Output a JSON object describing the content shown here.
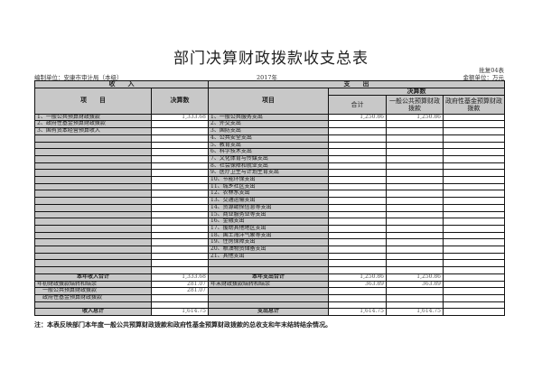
{
  "title": "部门决算财政拨款收支总表",
  "form_no": "批复04表",
  "unit": "编制单位：安康市审计局（本级）",
  "year": "2017年",
  "currency": "金额单位：万元",
  "headers": {
    "income": "收　　入",
    "expense": "支　　出",
    "item": "项　　目",
    "amount": "决算数",
    "exp_item": "项目",
    "exp_amount": "决算数",
    "total": "合计",
    "general": "一般公共预算财政拨款",
    "fund": "政府性基金预算财政拨款"
  },
  "rows": [
    [
      "1、一般公共预算财政拨款",
      "1,333.68",
      "1、一般公共服务支出",
      "1,250.86",
      "1,250.86",
      ""
    ],
    [
      "2、政府性基金预算财政拨款",
      "",
      "2、外交支出",
      "",
      "",
      ""
    ],
    [
      "3、国有资本经营预算收入",
      "",
      "3、国防支出",
      "",
      "",
      ""
    ],
    [
      "",
      "",
      "4、公共安全支出",
      "",
      "",
      ""
    ],
    [
      "",
      "",
      "5、教育支出",
      "",
      "",
      ""
    ],
    [
      "",
      "",
      "6、科学技术支出",
      "",
      "",
      ""
    ],
    [
      "",
      "",
      "7、文化体育与传媒支出",
      "",
      "",
      ""
    ],
    [
      "",
      "",
      "8、社会保障和就业支出",
      "",
      "",
      ""
    ],
    [
      "",
      "",
      "9、医疗卫生与计划生育支出",
      "",
      "",
      ""
    ],
    [
      "",
      "",
      "10、节能环保支出",
      "",
      "",
      ""
    ],
    [
      "",
      "",
      "11、城乡社区支出",
      "",
      "",
      ""
    ],
    [
      "",
      "",
      "12、农林水支出",
      "",
      "",
      ""
    ],
    [
      "",
      "",
      "13、交通运输支出",
      "",
      "",
      ""
    ],
    [
      "",
      "",
      "14、资源勘探信息等支出",
      "",
      "",
      ""
    ],
    [
      "",
      "",
      "15、商业服务业等支出",
      "",
      "",
      ""
    ],
    [
      "",
      "",
      "16、金融支出",
      "",
      "",
      ""
    ],
    [
      "",
      "",
      "17、援助其他地区支出",
      "",
      "",
      ""
    ],
    [
      "",
      "",
      "18、国土海洋气象等支出",
      "",
      "",
      ""
    ],
    [
      "",
      "",
      "19、住房保障支出",
      "",
      "",
      ""
    ],
    [
      "",
      "",
      "20、粮油物资储备支出",
      "",
      "",
      ""
    ],
    [
      "",
      "",
      "21、其他支出",
      "",
      "",
      ""
    ],
    [
      "",
      "",
      "",
      "",
      "",
      ""
    ],
    [
      "",
      "",
      "",
      "",
      "",
      ""
    ],
    [
      "本年收入合计",
      "1,333.68",
      "本年支出合计",
      "1,250.86",
      "1,250.86",
      ""
    ],
    [
      "年初财政拨款结转和结余",
      "281.07",
      "年末财政拨款结转和结余",
      "363.89",
      "363.89",
      ""
    ],
    [
      "　一般公共预算财政拨款",
      "281.07",
      "",
      "",
      "",
      ""
    ],
    [
      "　政府性基金预算财政拨款",
      "",
      "",
      "",
      "",
      ""
    ],
    [
      "",
      "",
      "",
      "",
      "",
      ""
    ],
    [
      "收入总计",
      "1,614.75",
      "支出总计",
      "1,614.75",
      "1,614.75",
      ""
    ]
  ],
  "note": "注：本表反映部门本年度一般公共预算财政拨款和政府性基金预算财政拨款的总收支和年末结转结余情况。"
}
